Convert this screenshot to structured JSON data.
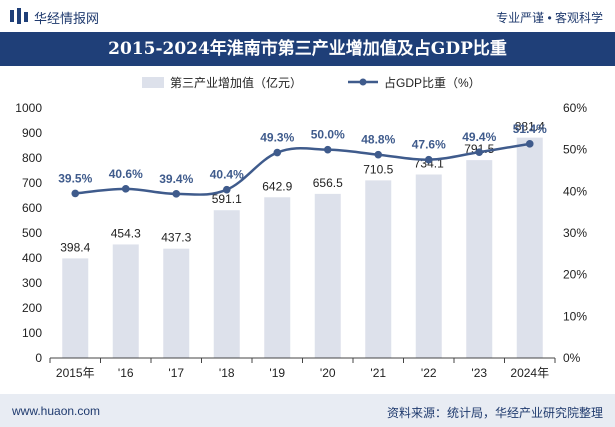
{
  "header": {
    "brand": "华经情报网",
    "slogan": "专业严谨 • 客观科学"
  },
  "footer": {
    "site": "www.huaon.com",
    "source": "资料来源：统计局，华经产业研究院整理"
  },
  "chart_data": {
    "type": "bar",
    "title": "2015-2024年淮南市第三产业增加值及占GDP比重",
    "categories": [
      "2015年",
      "'16",
      "'17",
      "'18",
      "'19",
      "'20",
      "'21",
      "'22",
      "'23",
      "2024年"
    ],
    "series": [
      {
        "name": "第三产业增加值（亿元）",
        "type": "bar",
        "axis": "left",
        "values": [
          398.4,
          454.3,
          437.3,
          591.1,
          642.9,
          656.5,
          710.5,
          734.1,
          791.5,
          881.4
        ],
        "labels": [
          "398.4",
          "454.3",
          "437.3",
          "591.1",
          "642.9",
          "656.5",
          "710.5",
          "734.1",
          "791.5",
          "881.4"
        ]
      },
      {
        "name": "占GDP比重（%）",
        "type": "line",
        "axis": "right",
        "values": [
          39.5,
          40.6,
          39.4,
          40.4,
          49.3,
          50.0,
          48.8,
          47.6,
          49.4,
          51.4
        ],
        "labels": [
          "39.5%",
          "40.6%",
          "39.4%",
          "40.4%",
          "49.3%",
          "50.0%",
          "48.8%",
          "47.6%",
          "49.4%",
          "51.4%"
        ]
      }
    ],
    "y_left": {
      "min": 0,
      "max": 1000,
      "ticks": [
        "0",
        "100",
        "200",
        "300",
        "400",
        "500",
        "600",
        "700",
        "800",
        "900",
        "1000"
      ]
    },
    "y_right": {
      "min": 0,
      "max": 60,
      "ticks": [
        "0%",
        "10%",
        "20%",
        "30%",
        "40%",
        "50%",
        "60%"
      ]
    },
    "legend_position": "top",
    "colors": {
      "bar": "#dde1eb",
      "line": "#3f5b8c",
      "axis_text": "#222222",
      "title_bg": "#1f3f78"
    }
  }
}
